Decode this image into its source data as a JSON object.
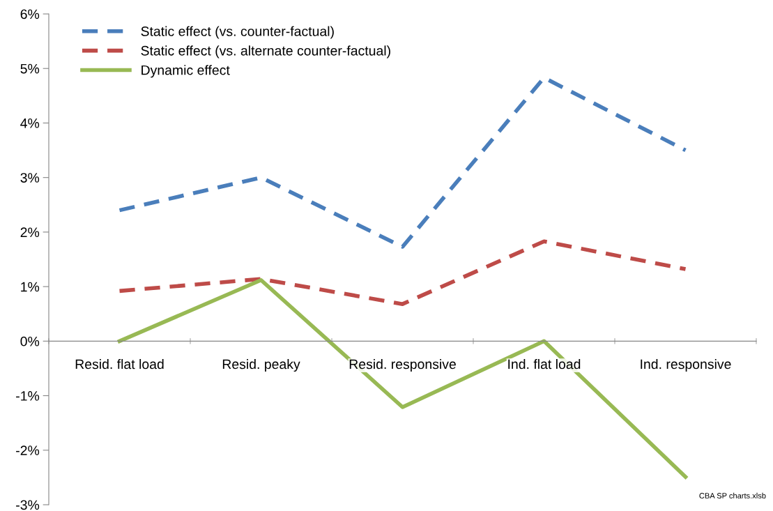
{
  "chart_data": {
    "type": "line",
    "categories": [
      "Resid. flat load",
      "Resid. peaky",
      "Resid. responsive",
      "Ind. flat load",
      "Ind. responsive"
    ],
    "series": [
      {
        "name": "Static effect (vs. counter-factual)",
        "color": "#4a7ebb",
        "line_style": "dashed",
        "values": [
          2.4,
          3.0,
          1.73,
          4.83,
          3.5
        ]
      },
      {
        "name": "Static effect (vs. alternate counter-factual)",
        "color": "#be4b48",
        "line_style": "dashed",
        "values": [
          0.92,
          1.14,
          0.68,
          1.83,
          1.32
        ]
      },
      {
        "name": "Dynamic effect",
        "color": "#98b954",
        "line_style": "solid",
        "values": [
          0,
          1.12,
          -1.21,
          0,
          -2.49
        ]
      }
    ],
    "ylim": [
      -3,
      6
    ],
    "yticks": [
      {
        "value": -3,
        "label": "-3%"
      },
      {
        "value": -2,
        "label": "-2%"
      },
      {
        "value": -1,
        "label": "-1%"
      },
      {
        "value": 0,
        "label": "0%"
      },
      {
        "value": 1,
        "label": "1%"
      },
      {
        "value": 2,
        "label": "2%"
      },
      {
        "value": 3,
        "label": "3%"
      },
      {
        "value": 4,
        "label": "4%"
      },
      {
        "value": 5,
        "label": "5%"
      },
      {
        "value": 6,
        "label": "6%"
      }
    ],
    "grid": false,
    "legend": "top left",
    "marker": "none",
    "annotations": [
      "CBA SP charts.xlsb"
    ]
  }
}
